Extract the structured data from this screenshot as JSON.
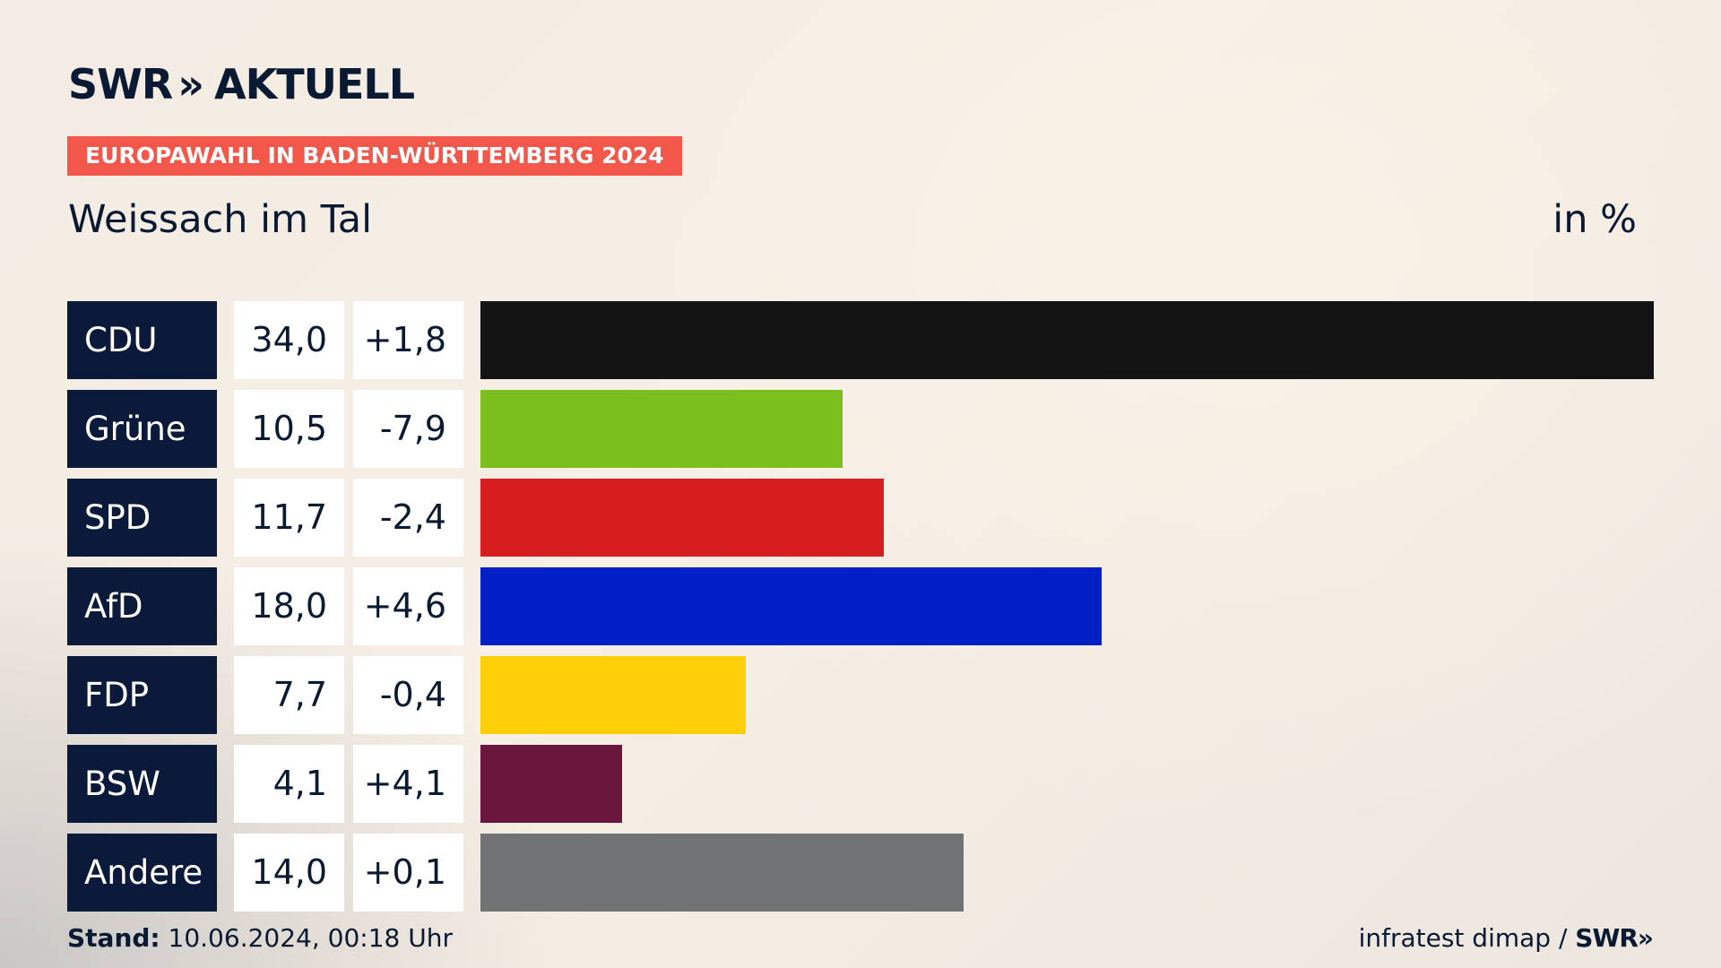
{
  "header": {
    "logo_text": "SWR",
    "logo_chevrons": "»",
    "logo_suffix": "AKTUELL",
    "tag": "EUROPAWAHL IN BADEN-WÜRTTEMBERG 2024",
    "subtitle": "Weissach im Tal",
    "unit": "in %"
  },
  "colors": {
    "accent_tag": "#f2574a",
    "label_bg": "#0b1a3a"
  },
  "chart_data": {
    "type": "bar",
    "orientation": "horizontal",
    "title": "Weissach im Tal",
    "unit": "in %",
    "xlim": [
      0,
      34.0
    ],
    "categories": [
      "CDU",
      "Grüne",
      "SPD",
      "AfD",
      "FDP",
      "BSW",
      "Andere"
    ],
    "values": [
      34.0,
      10.5,
      11.7,
      18.0,
      7.7,
      4.1,
      14.0
    ],
    "rows": [
      {
        "party": "CDU",
        "value": 34.0,
        "value_label": "34,0",
        "diff_label": "+1,8",
        "color": "#141414"
      },
      {
        "party": "Grüne",
        "value": 10.5,
        "value_label": "10,5",
        "diff_label": "-7,9",
        "color": "#7abf1e"
      },
      {
        "party": "SPD",
        "value": 11.7,
        "value_label": "11,7",
        "diff_label": "-2,4",
        "color": "#d61e1e"
      },
      {
        "party": "AfD",
        "value": 18.0,
        "value_label": "18,0",
        "diff_label": "+4,6",
        "color": "#0020c6"
      },
      {
        "party": "FDP",
        "value": 7.7,
        "value_label": "7,7",
        "diff_label": "-0,4",
        "color": "#ffcf0a"
      },
      {
        "party": "BSW",
        "value": 4.1,
        "value_label": "4,1",
        "diff_label": "+4,1",
        "color": "#6a163d"
      },
      {
        "party": "Andere",
        "value": 14.0,
        "value_label": "14,0",
        "diff_label": "+0,1",
        "color": "#717273"
      }
    ]
  },
  "footer": {
    "stand_label": "Stand:",
    "stand_value": "10.06.2024, 00:18 Uhr",
    "source": "infratest dimap / ",
    "brand": "SWR»"
  }
}
